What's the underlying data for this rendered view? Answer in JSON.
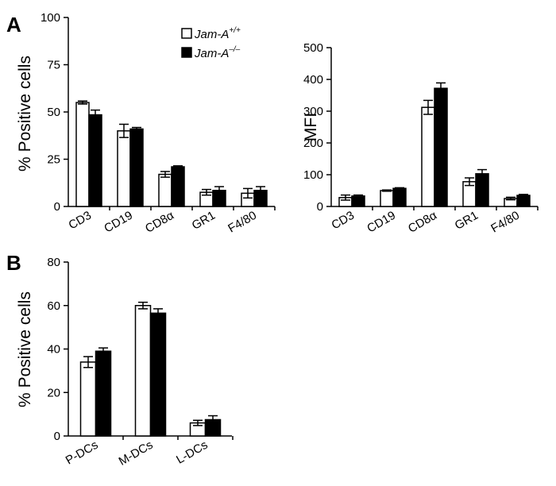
{
  "figure": {
    "panel_labels": [
      "A",
      "B"
    ],
    "legend": [
      {
        "genotype": "Jam-A",
        "superscript": "+/+",
        "fill": "#ffffff"
      },
      {
        "genotype": "Jam-A",
        "superscript": "–/–",
        "fill": "#000000"
      }
    ]
  },
  "chart_data": [
    {
      "panel": "A",
      "type": "bar",
      "ylabel": "% Positive cells",
      "xlabel": "",
      "ylim": [
        0,
        100
      ],
      "yticks": [
        0,
        25,
        50,
        75,
        100
      ],
      "categories": [
        "CD3",
        "CD19",
        "CD8α",
        "GR1",
        "F4/80"
      ],
      "series": [
        {
          "name": "Jam-A+/+",
          "fill": "#ffffff",
          "values": [
            55,
            40,
            17,
            7.5,
            7
          ],
          "errors": [
            0.8,
            3.5,
            1.5,
            1.5,
            2.5
          ]
        },
        {
          "name": "Jam-A–/–",
          "fill": "#000000",
          "values": [
            48.5,
            41,
            21,
            8.5,
            8.5
          ],
          "errors": [
            2.5,
            0.8,
            0.5,
            2,
            2
          ]
        }
      ]
    },
    {
      "panel": "A",
      "type": "bar",
      "ylabel": "MFI",
      "xlabel": "",
      "ylim": [
        0,
        500
      ],
      "yticks": [
        0,
        100,
        200,
        300,
        400,
        500
      ],
      "categories": [
        "CD3",
        "CD19",
        "CD8α",
        "GR1",
        "F4/80"
      ],
      "series": [
        {
          "name": "Jam-A+/+",
          "fill": "#ffffff",
          "values": [
            28,
            50,
            312,
            78,
            25
          ],
          "errors": [
            8,
            2,
            22,
            12,
            4
          ]
        },
        {
          "name": "Jam-A–/–",
          "fill": "#000000",
          "values": [
            33,
            57,
            372,
            103,
            35
          ],
          "errors": [
            3,
            2,
            17,
            13,
            3
          ]
        }
      ]
    },
    {
      "panel": "B",
      "type": "bar",
      "ylabel": "% Positive cells",
      "xlabel": "",
      "ylim": [
        0,
        80
      ],
      "yticks": [
        0,
        20,
        40,
        60,
        80
      ],
      "categories": [
        "P-DCs",
        "M-DCs",
        "L-DCs"
      ],
      "series": [
        {
          "name": "Jam-A+/+",
          "fill": "#ffffff",
          "values": [
            34,
            60,
            6
          ],
          "errors": [
            2.5,
            1.5,
            1.2
          ]
        },
        {
          "name": "Jam-A–/–",
          "fill": "#000000",
          "values": [
            39,
            56.5,
            7.5
          ],
          "errors": [
            1.5,
            2,
            1.8
          ]
        }
      ]
    }
  ]
}
